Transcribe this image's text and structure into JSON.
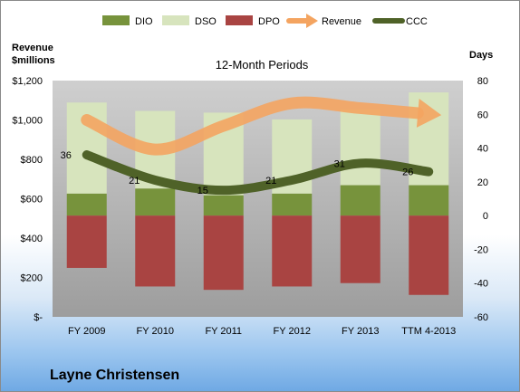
{
  "company": "Layne Christensen",
  "chart_data": {
    "type": "bar",
    "title": "12-Month Periods",
    "categories": [
      "FY 2009",
      "FY 2010",
      "FY 2011",
      "FY 2012",
      "FY 2013",
      "TTM 4-2013"
    ],
    "left_axis": {
      "label_line1": "Revenue",
      "label_line2": "$millions",
      "ylim": [
        0,
        1200
      ],
      "ticks": [
        0,
        200,
        400,
        600,
        800,
        1000,
        1200
      ],
      "tick_labels": [
        "$-",
        "$200",
        "$400",
        "$600",
        "$800",
        "$1,000",
        "$1,200"
      ]
    },
    "right_axis": {
      "label": "Days",
      "ylim": [
        -60,
        80
      ],
      "ticks": [
        -60,
        -40,
        -20,
        0,
        20,
        40,
        60,
        80
      ],
      "tick_labels": [
        "-60",
        "-40",
        "-20",
        "0",
        "20",
        "40",
        "60",
        "80"
      ]
    },
    "series": [
      {
        "name": "DIO",
        "type": "stacked-bar",
        "axis": "right",
        "color": "#77933c",
        "values": [
          13,
          16,
          12,
          13,
          18,
          18
        ]
      },
      {
        "name": "DSO",
        "type": "stacked-bar",
        "axis": "right",
        "color": "#d7e4bd",
        "values": [
          54,
          46,
          49,
          44,
          45,
          55
        ]
      },
      {
        "name": "DPO",
        "type": "stacked-bar",
        "axis": "right",
        "color": "#a94442",
        "values": [
          -31,
          -42,
          -44,
          -42,
          -40,
          -47
        ]
      },
      {
        "name": "Revenue",
        "type": "line-arrow",
        "axis": "left",
        "color": "#f4a460",
        "values": [
          1000,
          850,
          970,
          1085,
          1060,
          1030
        ]
      },
      {
        "name": "CCC",
        "type": "line",
        "axis": "right",
        "color": "#4f6228",
        "values": [
          36,
          21,
          15,
          21,
          31,
          26
        ],
        "labels": [
          "36",
          "21",
          "15",
          "21",
          "31",
          "26"
        ]
      }
    ],
    "legend": "top",
    "grid": false
  }
}
